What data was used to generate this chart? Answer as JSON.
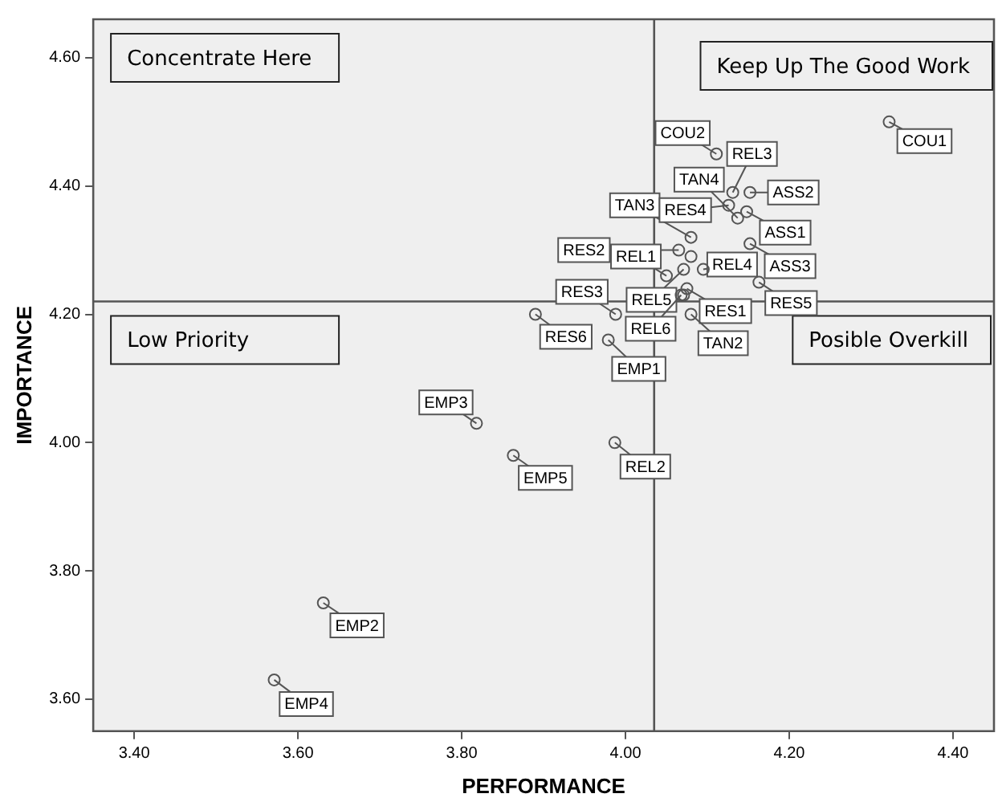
{
  "chart_data": {
    "type": "scatter",
    "xlabel": "PERFORMANCE",
    "ylabel": "IMPORTANCE",
    "x": [
      4.322,
      4.111,
      4.131,
      4.137,
      4.152,
      4.08,
      4.126,
      4.148,
      4.152,
      4.065,
      4.05,
      4.095,
      4.071,
      4.075,
      4.068,
      4.163,
      3.988,
      4.08,
      3.89,
      3.979,
      3.818,
      3.863,
      3.987,
      3.631,
      3.571,
      4.08,
      4.071
    ],
    "series": [
      {
        "color": "#555555",
        "values": [
          4.5,
          4.45,
          4.39,
          4.35,
          4.39,
          4.32,
          4.37,
          4.36,
          4.31,
          4.3,
          4.26,
          4.27,
          4.27,
          4.24,
          4.23,
          4.25,
          4.2,
          4.2,
          4.2,
          4.16,
          4.03,
          3.98,
          4.0,
          3.75,
          3.63,
          4.29,
          4.23
        ]
      }
    ],
    "marker": "circle",
    "grid": false,
    "legend": false,
    "xlim": [
      3.35,
      4.45
    ],
    "ylim": [
      3.55,
      4.66
    ],
    "xticks": [
      {
        "value": 3.4,
        "label": "3.40"
      },
      {
        "value": 3.6,
        "label": "3.60"
      },
      {
        "value": 3.8,
        "label": "3.80"
      },
      {
        "value": 4.0,
        "label": "4.00"
      },
      {
        "value": 4.2,
        "label": "4.20"
      },
      {
        "value": 4.4,
        "label": "4.40"
      }
    ],
    "yticks": [
      {
        "value": 3.6,
        "label": "3.60"
      },
      {
        "value": 3.8,
        "label": "3.80"
      },
      {
        "value": 4.0,
        "label": "4.00"
      },
      {
        "value": 4.2,
        "label": "4.20"
      },
      {
        "value": 4.4,
        "label": "4.40"
      },
      {
        "value": 4.6,
        "label": "4.60"
      }
    ],
    "ref_lines": [
      {
        "axis": "x",
        "value": 4.035,
        "color": "#555555"
      },
      {
        "axis": "y",
        "value": 4.22,
        "color": "#555555"
      }
    ],
    "annotations": [
      "Concentrate Here",
      "Keep Up The Good Work",
      "Low Priority",
      "Posible Overkill",
      {
        "text": "COU1",
        "x": 4.322,
        "y": 4.5
      },
      {
        "text": "COU2",
        "x": 4.111,
        "y": 4.45
      },
      {
        "text": "REL3",
        "x": 4.131,
        "y": 4.39
      },
      {
        "text": "TAN4",
        "x": 4.137,
        "y": 4.35
      },
      {
        "text": "ASS2",
        "x": 4.152,
        "y": 4.39
      },
      {
        "text": "TAN3",
        "x": 4.08,
        "y": 4.32
      },
      {
        "text": "RES4",
        "x": 4.126,
        "y": 4.37
      },
      {
        "text": "ASS1",
        "x": 4.148,
        "y": 4.36
      },
      {
        "text": "ASS3",
        "x": 4.152,
        "y": 4.31
      },
      {
        "text": "RES2",
        "x": 4.065,
        "y": 4.3
      },
      {
        "text": "REL1",
        "x": 4.05,
        "y": 4.26
      },
      {
        "text": "REL4",
        "x": 4.095,
        "y": 4.27
      },
      {
        "text": "REL5",
        "x": 4.071,
        "y": 4.27
      },
      {
        "text": "RES1",
        "x": 4.075,
        "y": 4.24
      },
      {
        "text": "REL6",
        "x": 4.068,
        "y": 4.23
      },
      {
        "text": "RES5",
        "x": 4.163,
        "y": 4.25
      },
      {
        "text": "RES3",
        "x": 3.988,
        "y": 4.2
      },
      {
        "text": "TAN2",
        "x": 4.08,
        "y": 4.2
      },
      {
        "text": "RES6",
        "x": 3.89,
        "y": 4.2
      },
      {
        "text": "EMP1",
        "x": 3.979,
        "y": 4.16
      },
      {
        "text": "EMP3",
        "x": 3.818,
        "y": 4.03
      },
      {
        "text": "EMP5",
        "x": 3.863,
        "y": 3.98
      },
      {
        "text": "REL2",
        "x": 3.987,
        "y": 4.0
      },
      {
        "text": "EMP2",
        "x": 3.631,
        "y": 3.75
      },
      {
        "text": "EMP4",
        "x": 3.571,
        "y": 3.63
      }
    ]
  }
}
